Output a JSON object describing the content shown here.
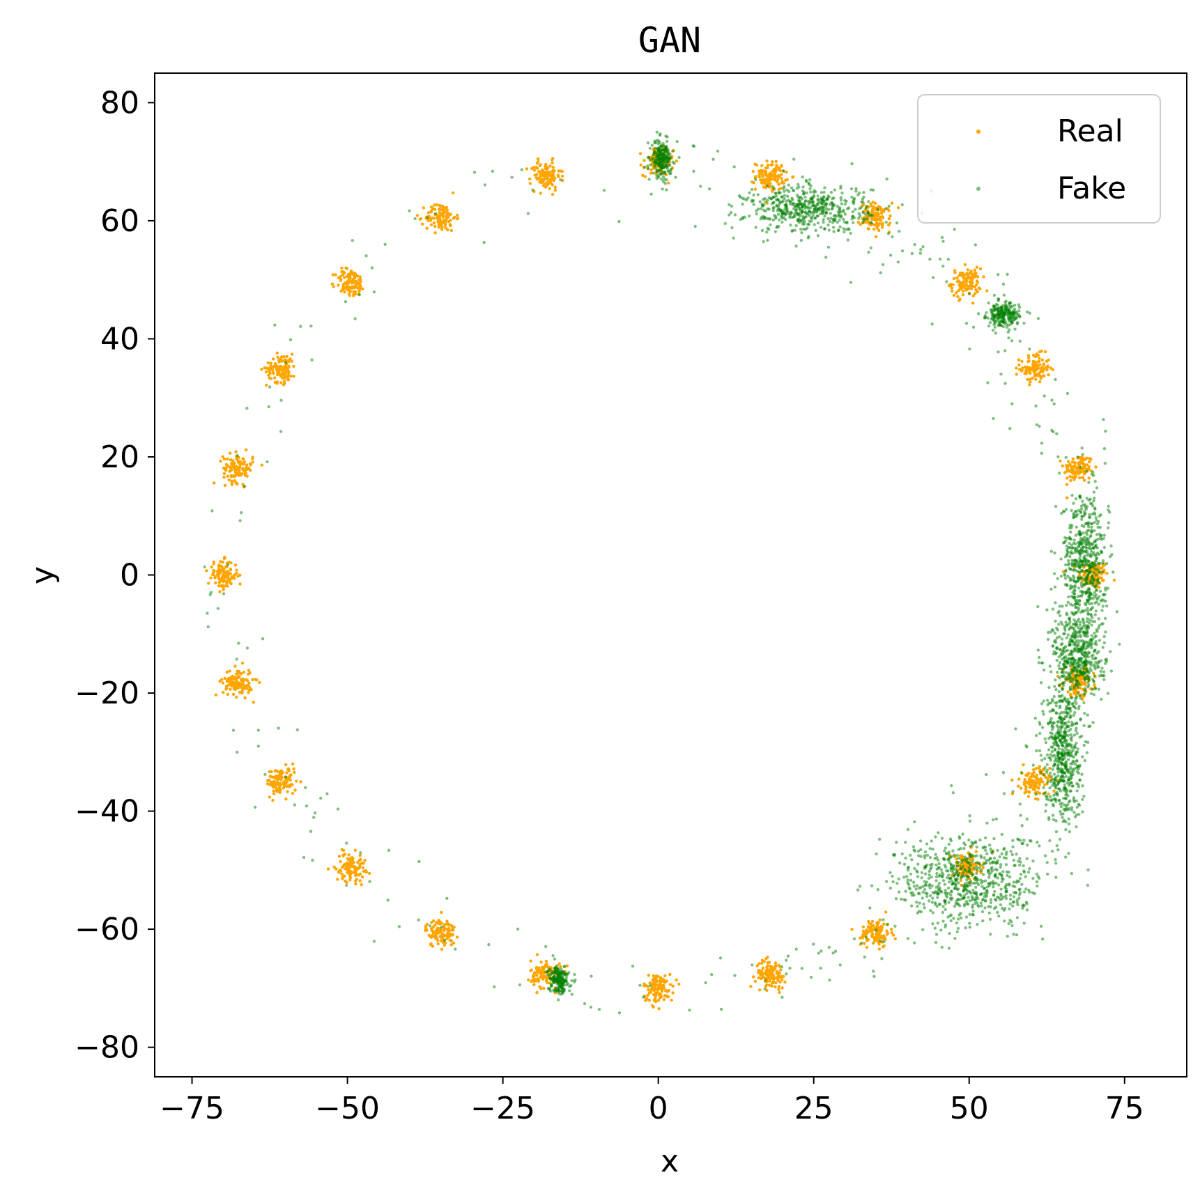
{
  "chart_data": {
    "type": "scatter",
    "title": "GAN",
    "xlabel": "x",
    "ylabel": "y",
    "xlim": [
      -81,
      85
    ],
    "ylim": [
      -85,
      85
    ],
    "xticks": [
      -75,
      -50,
      -25,
      0,
      25,
      50,
      75
    ],
    "yticks": [
      -80,
      -60,
      -40,
      -20,
      0,
      20,
      40,
      60,
      80
    ],
    "xtick_labels": [
      "−75",
      "−50",
      "−25",
      "0",
      "25",
      "50",
      "75"
    ],
    "ytick_labels": [
      "−80",
      "−60",
      "−40",
      "−20",
      "0",
      "20",
      "40",
      "60",
      "80"
    ],
    "grid": false,
    "legend_position": "top-right",
    "series": [
      {
        "name": "Real",
        "color": "#ffa500",
        "description_of_clusters": "24 gaussian clusters evenly spaced on a circle of radius 70 centred at origin",
        "cluster_centers": [
          [
            70.0,
            0.0
          ],
          [
            67.6,
            18.1
          ],
          [
            60.6,
            35.0
          ],
          [
            49.5,
            49.5
          ],
          [
            35.0,
            60.6
          ],
          [
            18.1,
            67.6
          ],
          [
            0.0,
            70.0
          ],
          [
            -18.1,
            67.6
          ],
          [
            -35.0,
            60.6
          ],
          [
            -49.5,
            49.5
          ],
          [
            -60.6,
            35.0
          ],
          [
            -67.6,
            18.1
          ],
          [
            -70.0,
            0.0
          ],
          [
            -67.6,
            -18.1
          ],
          [
            -60.6,
            -35.0
          ],
          [
            -49.5,
            -49.5
          ],
          [
            -35.0,
            -60.6
          ],
          [
            -18.1,
            -67.6
          ],
          [
            0.0,
            -70.0
          ],
          [
            18.1,
            -67.6
          ],
          [
            35.0,
            -60.6
          ],
          [
            49.5,
            -49.5
          ],
          [
            60.6,
            -35.0
          ],
          [
            67.6,
            -18.1
          ]
        ],
        "cluster_std": 1.2
      },
      {
        "name": "Fake",
        "color": "#008000",
        "opacity": 0.5,
        "description_of_clusters": "generated samples, dense on the right side of the ring and sparse elsewhere",
        "dense_regions": [
          {
            "center": [
              0.5,
              70.5
            ],
            "spread": [
              0.8,
              1.5
            ]
          },
          {
            "center": [
              24,
              62
            ],
            "spread": [
              5,
              2
            ]
          },
          {
            "center": [
              55.5,
              44
            ],
            "spread": [
              1.3,
              1
            ]
          },
          {
            "center": [
              68.5,
              2
            ],
            "spread": [
              1.8,
              6
            ]
          },
          {
            "center": [
              67.5,
              -14
            ],
            "spread": [
              2,
              4
            ]
          },
          {
            "center": [
              65,
              -30
            ],
            "spread": [
              1.5,
              6
            ]
          },
          {
            "center": [
              50,
              -52
            ],
            "spread": [
              6,
              4
            ]
          },
          {
            "center": [
              -16,
              -68.5
            ],
            "spread": [
              0.8,
              1.2
            ]
          }
        ]
      }
    ]
  }
}
